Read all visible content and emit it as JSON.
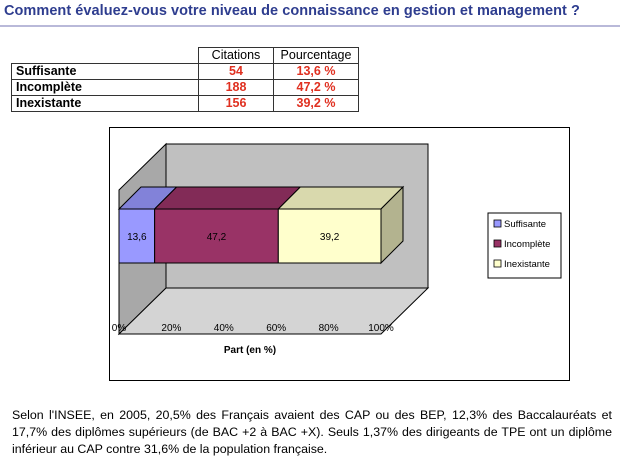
{
  "title": "Comment évaluez-vous votre niveau de connaissance en gestion et management ?",
  "table": {
    "headers": [
      "Citations",
      "Pourcentage"
    ],
    "rows": [
      {
        "label": "Suffisante",
        "citations": "54",
        "pourcentage": "13,6 %"
      },
      {
        "label": "Incomplète",
        "citations": "188",
        "pourcentage": "47,2 %"
      },
      {
        "label": "Inexistante",
        "citations": "156",
        "pourcentage": "39,2 %"
      }
    ]
  },
  "chart_data": {
    "type": "bar",
    "orientation": "horizontal",
    "stacked": "100%",
    "three_d": true,
    "categories": [
      ""
    ],
    "series": [
      {
        "name": "Suffisante",
        "values": [
          13.6
        ],
        "label": "13,6",
        "color": "#9999ff"
      },
      {
        "name": "Incomplète",
        "values": [
          47.2
        ],
        "label": "47,2",
        "color": "#993366"
      },
      {
        "name": "Inexistante",
        "values": [
          39.2
        ],
        "label": "39,2",
        "color": "#ffffcc"
      }
    ],
    "xlim": [
      0,
      100
    ],
    "x_ticks": [
      "0%",
      "20%",
      "40%",
      "60%",
      "80%",
      "100%"
    ],
    "xlabel": "Part (en %)",
    "ylabel": "",
    "wall_color": "#c0c0c0",
    "legend_position": "right"
  },
  "footnote": "Selon l'INSEE, en 2005, 20,5% des Français avaient des CAP ou des BEP, 12,3% des Baccalauréats et 17,7% des diplômes supérieurs (de BAC +2 à BAC +X). Seuls 1,37% des dirigeants de TPE ont un diplôme inférieur au CAP contre 31,6% de la population française."
}
